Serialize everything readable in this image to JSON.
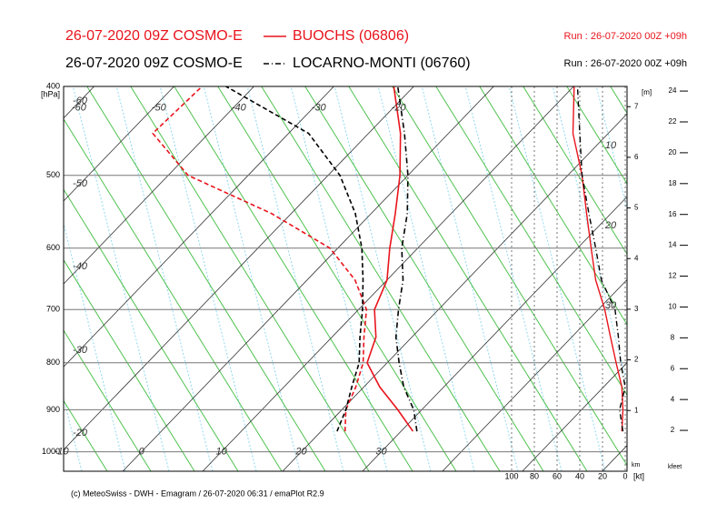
{
  "chart_data": {
    "type": "emagram",
    "pressure": [
      950,
      900,
      850,
      800,
      750,
      700,
      650,
      600,
      550,
      500,
      450,
      400
    ],
    "series": [
      {
        "model": "26-07-2020 09Z COSMO-E",
        "name": "BUOCHS (06806)",
        "run": "Run : 26-07-2020 00Z +09h",
        "color": "#e8141c",
        "line_style": "solid",
        "temperature": [
          21.5,
          17,
          12,
          7.5,
          5.5,
          2,
          0,
          -3.5,
          -7,
          -11,
          -16,
          -22.5
        ],
        "dewpoint": [
          13,
          10.5,
          9,
          7,
          4,
          1,
          -4,
          -11,
          -22.5,
          -37.5,
          -47,
          -46.5
        ],
        "wind_speed": [
          3,
          2,
          3,
          8,
          13,
          18,
          26,
          30,
          34,
          38,
          46,
          45
        ]
      },
      {
        "model": "26-07-2020 09Z COSMO-E",
        "name": "LOCARNO-MONTI (06760)",
        "run": "Run : 26-07-2020 00Z +09h",
        "color": "#000000",
        "line_style": "dash-dot",
        "temperature": [
          22,
          19,
          15,
          11.5,
          8,
          5,
          2,
          -2,
          -5.5,
          -10,
          -15.5,
          -22
        ],
        "dewpoint": [
          12,
          10.5,
          8.5,
          6.5,
          3.5,
          0.5,
          -3,
          -7,
          -12,
          -18.5,
          -27.5,
          -43.5
        ],
        "wind_speed": [
          2,
          5,
          0,
          4,
          6,
          9,
          21,
          26,
          32,
          38,
          40,
          42
        ]
      }
    ],
    "ylim": [
      1050,
      400
    ],
    "yticks": [
      400,
      500,
      600,
      700,
      800,
      900,
      1000
    ],
    "y_unit": "[hPa]",
    "log_scale": true,
    "xlim": [
      -17.4,
      53.1
    ],
    "xticks": [
      -110,
      -100,
      -90,
      -80,
      -70,
      -60,
      -50,
      -40,
      -30,
      -20,
      -10,
      0,
      10,
      20,
      30,
      40,
      50
    ],
    "temp_labels_top": [
      -60,
      -50,
      -40,
      -30,
      -20
    ],
    "temp_labels_left": [
      -60,
      -50,
      -40,
      -30,
      -20
    ],
    "temp_labels_bottom": [
      -10,
      0,
      10,
      20,
      30
    ],
    "mixing_ratio_labels": [
      10,
      20,
      30
    ],
    "height_unit": "[m]",
    "km_lim": [
      -0.2,
      7.4
    ],
    "km_ticks": [
      1,
      2,
      3,
      4,
      5,
      6,
      7
    ],
    "km_label": "km",
    "kfeet_lim": [
      -0.65,
      24.3
    ],
    "kfeet_ticks": [
      2,
      4,
      6,
      8,
      10,
      12,
      14,
      16,
      18,
      20,
      22,
      24
    ],
    "kfeet_label": "kfeet",
    "wind_lim": [
      100,
      0
    ],
    "wind_ticks": [
      100,
      80,
      60,
      40,
      20,
      0
    ],
    "wind_unit": "[kt]",
    "footer": "(c) MeteoSwiss - DWH - Emagram / 26-07-2020  06:31 / emaPlot R2.9"
  }
}
